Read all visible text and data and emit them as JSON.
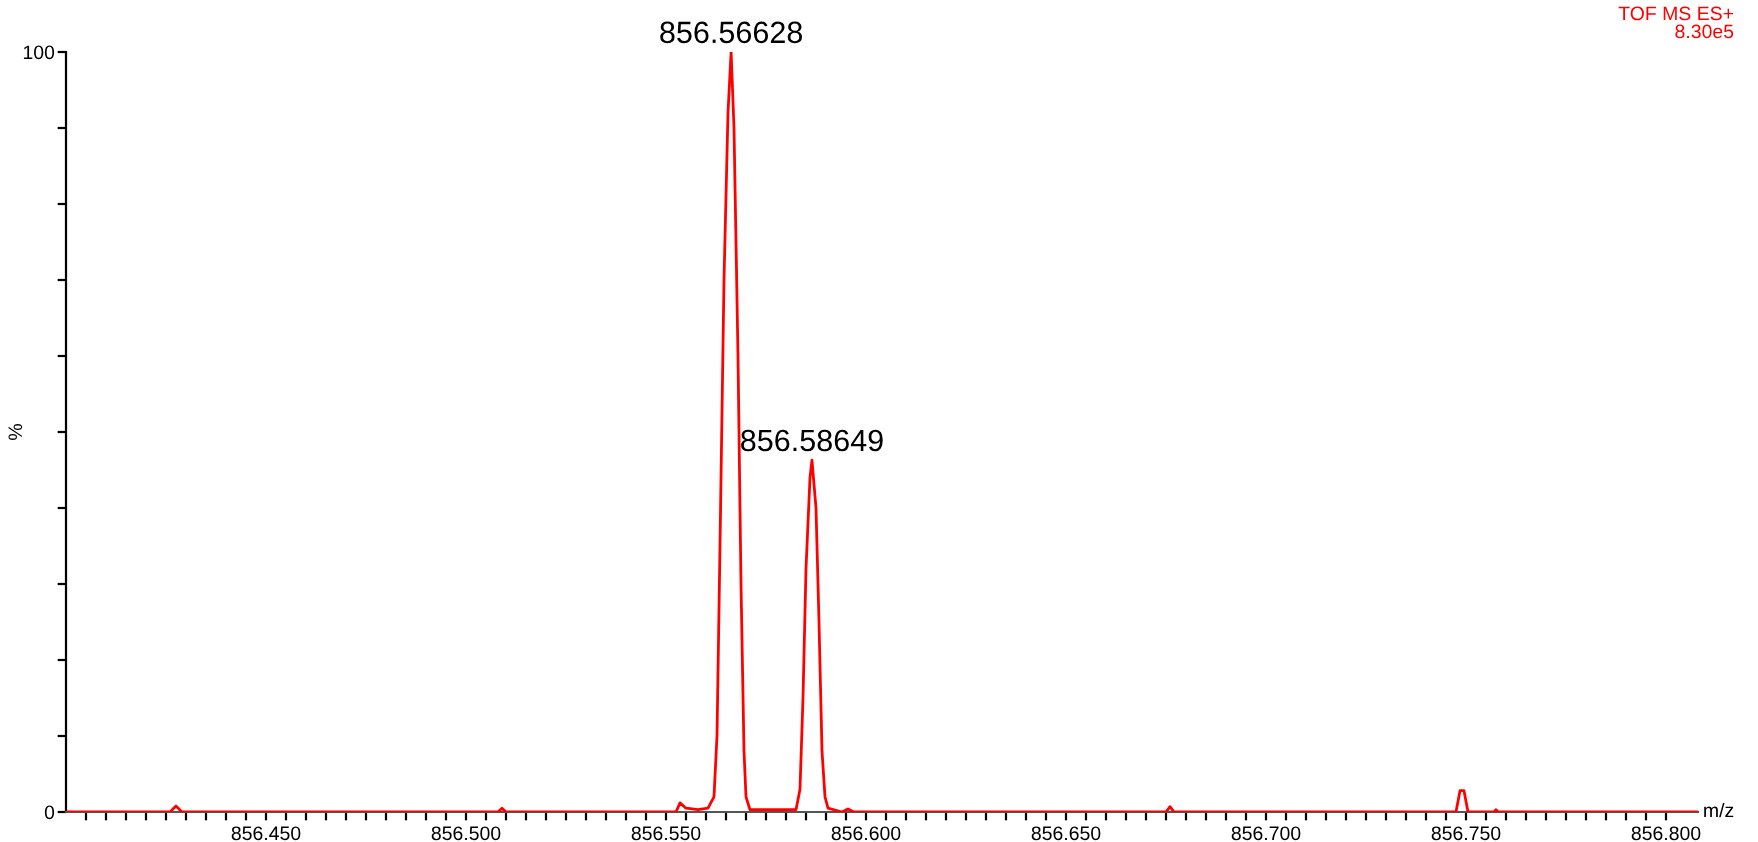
{
  "chart_data": {
    "type": "line",
    "xlabel": "m/z",
    "ylabel": "%",
    "annotations": [
      {
        "text": "856.56628",
        "x": 856.56628,
        "y": 100
      },
      {
        "text": "856.58649",
        "x": 856.58649,
        "y": 46.3
      },
      "TOF MS ES+",
      "8.30e5"
    ],
    "series": [
      {
        "color": "#ff0000",
        "x": [
          856.4,
          856.426,
          856.4275,
          856.429,
          856.508,
          856.509,
          856.51,
          856.5525,
          856.5535,
          856.555,
          856.558,
          856.5605,
          856.562,
          856.56275,
          856.5635,
          856.5645,
          856.5655,
          856.56628,
          856.567,
          856.568,
          856.56875,
          856.5695,
          856.57,
          856.571,
          856.5825,
          856.5835,
          856.58425,
          856.585,
          856.586,
          856.58649,
          856.5875,
          856.58825,
          856.589,
          856.58975,
          856.5905,
          856.594,
          856.5955,
          856.597,
          856.675,
          856.676,
          856.677,
          856.7475,
          856.7485,
          856.7495,
          856.7505,
          856.757,
          856.7575,
          856.758,
          856.808
        ],
        "values": [
          0,
          0,
          0.8,
          0,
          0,
          0.5,
          0,
          0,
          1.2,
          0.5,
          0.3,
          0.5,
          2,
          10,
          35,
          70,
          92,
          100,
          90,
          60,
          30,
          8,
          2,
          0.3,
          0.3,
          3,
          15,
          32,
          44,
          46.3,
          40,
          25,
          8,
          2,
          0.5,
          0,
          0.4,
          0,
          0,
          0.7,
          0,
          0,
          2.8,
          2.8,
          0,
          0,
          0.3,
          0,
          0
        ]
      }
    ],
    "xlim": [
      856.4,
      856.808
    ],
    "xticks": [
      {
        "value": 856.405,
        "label": null
      },
      {
        "value": 856.41,
        "label": null
      },
      {
        "value": 856.415,
        "label": null
      },
      {
        "value": 856.42,
        "label": null
      },
      {
        "value": 856.425,
        "label": null
      },
      {
        "value": 856.43,
        "label": null
      },
      {
        "value": 856.435,
        "label": null
      },
      {
        "value": 856.44,
        "label": null
      },
      {
        "value": 856.445,
        "label": null
      },
      {
        "value": 856.45,
        "label": "856.450"
      },
      {
        "value": 856.455,
        "label": null
      },
      {
        "value": 856.46,
        "label": null
      },
      {
        "value": 856.465,
        "label": null
      },
      {
        "value": 856.47,
        "label": null
      },
      {
        "value": 856.475,
        "label": null
      },
      {
        "value": 856.48,
        "label": null
      },
      {
        "value": 856.485,
        "label": null
      },
      {
        "value": 856.49,
        "label": null
      },
      {
        "value": 856.495,
        "label": null
      },
      {
        "value": 856.5,
        "label": "856.500"
      },
      {
        "value": 856.505,
        "label": null
      },
      {
        "value": 856.51,
        "label": null
      },
      {
        "value": 856.515,
        "label": null
      },
      {
        "value": 856.52,
        "label": null
      },
      {
        "value": 856.525,
        "label": null
      },
      {
        "value": 856.53,
        "label": null
      },
      {
        "value": 856.535,
        "label": null
      },
      {
        "value": 856.54,
        "label": null
      },
      {
        "value": 856.545,
        "label": null
      },
      {
        "value": 856.55,
        "label": "856.550"
      },
      {
        "value": 856.555,
        "label": null
      },
      {
        "value": 856.56,
        "label": null
      },
      {
        "value": 856.565,
        "label": null
      },
      {
        "value": 856.57,
        "label": null
      },
      {
        "value": 856.575,
        "label": null
      },
      {
        "value": 856.58,
        "label": null
      },
      {
        "value": 856.585,
        "label": null
      },
      {
        "value": 856.59,
        "label": null
      },
      {
        "value": 856.595,
        "label": null
      },
      {
        "value": 856.6,
        "label": "856.600"
      },
      {
        "value": 856.605,
        "label": null
      },
      {
        "value": 856.61,
        "label": null
      },
      {
        "value": 856.615,
        "label": null
      },
      {
        "value": 856.62,
        "label": null
      },
      {
        "value": 856.625,
        "label": null
      },
      {
        "value": 856.63,
        "label": null
      },
      {
        "value": 856.635,
        "label": null
      },
      {
        "value": 856.64,
        "label": null
      },
      {
        "value": 856.645,
        "label": null
      },
      {
        "value": 856.65,
        "label": "856.650"
      },
      {
        "value": 856.655,
        "label": null
      },
      {
        "value": 856.66,
        "label": null
      },
      {
        "value": 856.665,
        "label": null
      },
      {
        "value": 856.67,
        "label": null
      },
      {
        "value": 856.675,
        "label": null
      },
      {
        "value": 856.68,
        "label": null
      },
      {
        "value": 856.685,
        "label": null
      },
      {
        "value": 856.69,
        "label": null
      },
      {
        "value": 856.695,
        "label": null
      },
      {
        "value": 856.7,
        "label": "856.700"
      },
      {
        "value": 856.705,
        "label": null
      },
      {
        "value": 856.71,
        "label": null
      },
      {
        "value": 856.715,
        "label": null
      },
      {
        "value": 856.72,
        "label": null
      },
      {
        "value": 856.725,
        "label": null
      },
      {
        "value": 856.73,
        "label": null
      },
      {
        "value": 856.735,
        "label": null
      },
      {
        "value": 856.74,
        "label": null
      },
      {
        "value": 856.745,
        "label": null
      },
      {
        "value": 856.75,
        "label": "856.750"
      },
      {
        "value": 856.755,
        "label": null
      },
      {
        "value": 856.76,
        "label": null
      },
      {
        "value": 856.765,
        "label": null
      },
      {
        "value": 856.77,
        "label": null
      },
      {
        "value": 856.775,
        "label": null
      },
      {
        "value": 856.78,
        "label": null
      },
      {
        "value": 856.785,
        "label": null
      },
      {
        "value": 856.79,
        "label": null
      },
      {
        "value": 856.795,
        "label": null
      },
      {
        "value": 856.8,
        "label": "856.800"
      }
    ],
    "ylim": [
      0,
      100
    ],
    "yticks": [
      0,
      {
        "value": 10,
        "label": null
      },
      {
        "value": 20,
        "label": null
      },
      {
        "value": 30,
        "label": null
      },
      {
        "value": 40,
        "label": null
      },
      {
        "value": 50,
        "label": null
      },
      {
        "value": 60,
        "label": null
      },
      {
        "value": 70,
        "label": null
      },
      {
        "value": 80,
        "label": null
      },
      {
        "value": 90,
        "label": null
      },
      100
    ],
    "grid": false
  }
}
